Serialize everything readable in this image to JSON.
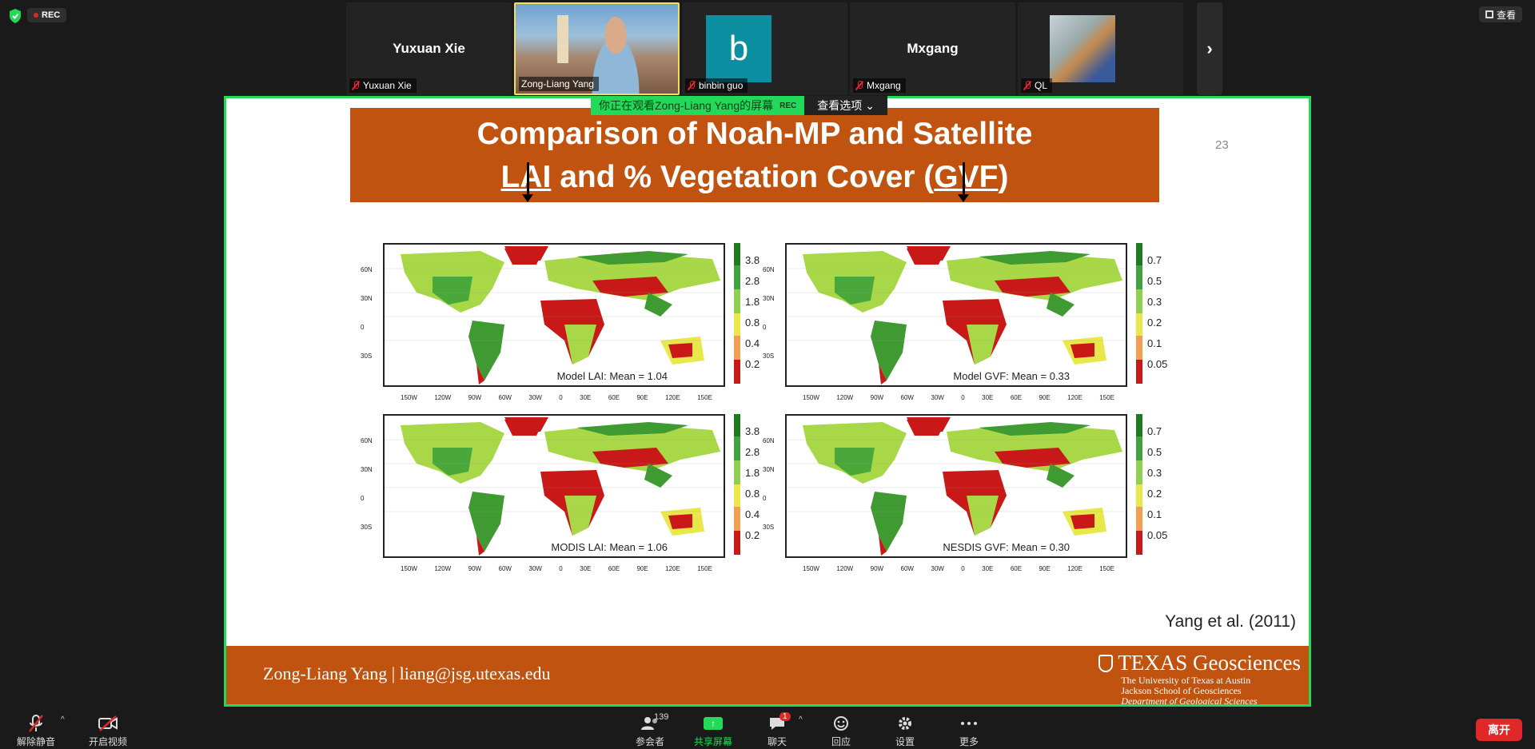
{
  "top": {
    "rec_label": "REC",
    "view_label": "查看"
  },
  "strip": {
    "tiles": [
      {
        "name": "Yuxuan Xie",
        "label": "Yuxuan Xie"
      },
      {
        "name": "",
        "label": "Zong-Liang Yang"
      },
      {
        "name": "b",
        "label": "binbin guo"
      },
      {
        "name": "Mxgang",
        "label": "Mxgang"
      },
      {
        "name": "",
        "label": "QL"
      }
    ],
    "next_glyph": "›"
  },
  "share_banner": {
    "message": "你正在观看Zong-Liang Yang的屏幕",
    "rec": "REC",
    "options": "查看选项"
  },
  "slide": {
    "title_line1": "Comparison of Noah-MP and Satellite",
    "title_line2_a": "LAI",
    "title_line2_b": " and % Vegetation Cover (",
    "title_line2_c": "GVF",
    "title_line2_d": ")",
    "page_number": "23",
    "panels": [
      {
        "caption": "Model LAI: Mean = 1.04",
        "colorbar": [
          "3.8",
          "2.8",
          "1.8",
          "0.8",
          "0.4",
          "0.2"
        ]
      },
      {
        "caption": "Model GVF: Mean = 0.33",
        "colorbar": [
          "0.7",
          "0.5",
          "0.3",
          "0.2",
          "0.1",
          "0.05"
        ]
      },
      {
        "caption": "MODIS LAI: Mean = 1.06",
        "colorbar": [
          "3.8",
          "2.8",
          "1.8",
          "0.8",
          "0.4",
          "0.2"
        ]
      },
      {
        "caption": "NESDIS GVF: Mean = 0.30",
        "colorbar": [
          "0.7",
          "0.5",
          "0.3",
          "0.2",
          "0.1",
          "0.05"
        ]
      }
    ],
    "lat_ticks": [
      "60N",
      "30N",
      "0",
      "30S"
    ],
    "lon_ticks": [
      "150W",
      "120W",
      "90W",
      "60W",
      "30W",
      "0",
      "30E",
      "60E",
      "90E",
      "120E",
      "150E"
    ],
    "citation": "Yang et al. (2011)",
    "footer_name": "Zong-Liang Yang  |  liang@jsg.utexas.edu",
    "brand": "TEXAS Geosciences",
    "brand_sub1": "The University of Texas at Austin",
    "brand_sub2": "Jackson School of Geosciences",
    "brand_sub3": "Department of Geological Sciences"
  },
  "toolbar": {
    "unmute": "解除静音",
    "start_video": "开启视频",
    "participants": "参会者",
    "participants_count": "139",
    "share": "共享屏幕",
    "chat": "聊天",
    "chat_badge": "1",
    "react": "回应",
    "settings": "设置",
    "more": "更多",
    "leave": "离开"
  },
  "colors": {
    "accent_green": "#23d959",
    "slide_orange": "#c0530f",
    "leave_red": "#e02828"
  }
}
